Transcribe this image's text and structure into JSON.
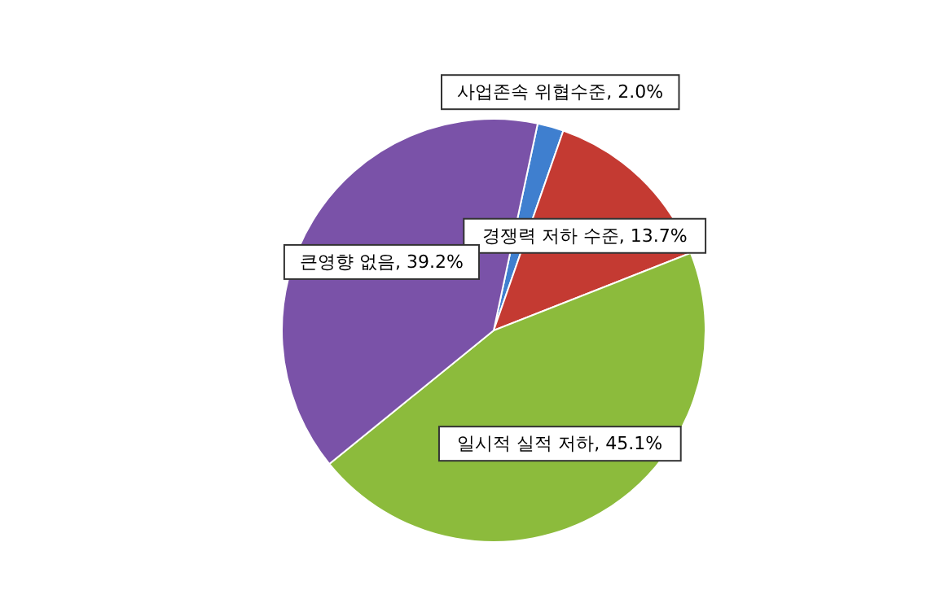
{
  "chart_data": {
    "type": "pie",
    "categories": [
      "사업존속 위협수준",
      "경쟁력 저하 수준",
      "일시적 실적 저하",
      "큰영향 없음"
    ],
    "values": [
      2.0,
      13.7,
      45.1,
      39.2
    ],
    "value_labels": [
      "2.0%",
      "13.7%",
      "45.1%",
      "39.2%"
    ],
    "colors": [
      "#3f7fcf",
      "#c43a32",
      "#8cbb3c",
      "#7a52a8"
    ]
  }
}
